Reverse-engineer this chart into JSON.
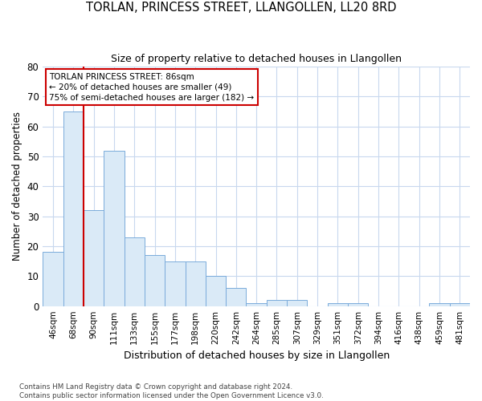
{
  "title": "TORLAN, PRINCESS STREET, LLANGOLLEN, LL20 8RD",
  "subtitle": "Size of property relative to detached houses in Llangollen",
  "xlabel": "Distribution of detached houses by size in Llangollen",
  "ylabel": "Number of detached properties",
  "bar_color": "#daeaf7",
  "bar_edge_color": "#7aabdb",
  "background_color": "#ffffff",
  "grid_color": "#c8d8ee",
  "categories": [
    "46sqm",
    "68sqm",
    "90sqm",
    "111sqm",
    "133sqm",
    "155sqm",
    "177sqm",
    "198sqm",
    "220sqm",
    "242sqm",
    "264sqm",
    "285sqm",
    "307sqm",
    "329sqm",
    "351sqm",
    "372sqm",
    "394sqm",
    "416sqm",
    "438sqm",
    "459sqm",
    "481sqm"
  ],
  "values": [
    18,
    65,
    32,
    52,
    23,
    17,
    15,
    15,
    10,
    6,
    1,
    2,
    2,
    0,
    1,
    1,
    0,
    0,
    0,
    1,
    1
  ],
  "ylim": [
    0,
    80
  ],
  "yticks": [
    0,
    10,
    20,
    30,
    40,
    50,
    60,
    70,
    80
  ],
  "red_line_x": 1.5,
  "annotation_text": "TORLAN PRINCESS STREET: 86sqm\n← 20% of detached houses are smaller (49)\n75% of semi-detached houses are larger (182) →",
  "footer": "Contains HM Land Registry data © Crown copyright and database right 2024.\nContains public sector information licensed under the Open Government Licence v3.0.",
  "annotation_box_color": "#ffffff",
  "annotation_box_edge": "#cc0000",
  "red_line_color": "#cc0000"
}
